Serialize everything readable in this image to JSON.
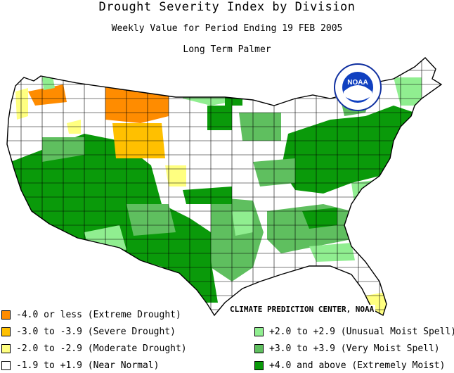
{
  "title": "Drought Severity Index by Division",
  "subtitle": "Weekly Value for Period Ending 19 FEB 2005",
  "index_name": "Long Term Palmer",
  "credit": "CLIMATE PREDICTION CENTER, NOAA",
  "logo_text": "NOAA",
  "colors": {
    "extreme_drought": "#ff8c00",
    "severe_drought": "#ffc000",
    "moderate_drought": "#ffff80",
    "near_normal": "#ffffff",
    "unusual_moist": "#90ee90",
    "very_moist": "#5fbf5f",
    "extremely_moist": "#0a9a0a"
  },
  "legend": [
    {
      "label": "-4.0 or less (Extreme Drought)",
      "color": "#ff8c00"
    },
    {
      "label": "-3.0 to -3.9 (Severe Drought)",
      "color": "#ffc000"
    },
    {
      "label": "-2.0 to -2.9 (Moderate Drought)",
      "color": "#ffff80"
    },
    {
      "label": "-1.9 to +1.9 (Near Normal)",
      "color": "#ffffff"
    },
    {
      "label": "+2.0 to +2.9 (Unusual Moist Spell)",
      "color": "#90ee90"
    },
    {
      "label": "+3.0 to +3.9 (Very Moist Spell)",
      "color": "#5fbf5f"
    },
    {
      "label": "+4.0 and above (Extremely Moist)",
      "color": "#0a9a0a"
    }
  ]
}
